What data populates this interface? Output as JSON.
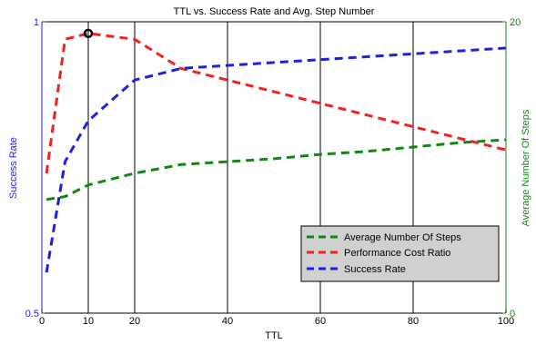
{
  "chart_data": {
    "type": "line",
    "title": "TTL vs. Success Rate and Avg. Step Number",
    "xlabel": "TTL",
    "ylabel_left": "Success Rate",
    "ylabel_right": "Average Number Of Steps",
    "xlim": [
      0,
      100
    ],
    "ylim_left": [
      0.5,
      1
    ],
    "ylim_right": [
      0,
      20
    ],
    "x_ticks": [
      "0",
      "10",
      "20",
      "40",
      "60",
      "80",
      "100"
    ],
    "y_left_ticks": [
      "0.5",
      "1"
    ],
    "y_right_ticks": [
      "0",
      "20"
    ],
    "vertical_gridlines_at": [
      10,
      20,
      40,
      60,
      80
    ],
    "legend_position": "bottom-right",
    "colors": {
      "success_rate": "#1f1fe0",
      "performance_cost_ratio": "#ee2222",
      "average_steps": "#118811",
      "left_axis": "#1f1fe0",
      "right_axis": "#118811",
      "legend_bg": "#d0d0d0"
    },
    "series": [
      {
        "name": "Average Number Of Steps",
        "key": "average_steps",
        "axis": "right",
        "x": [
          1,
          5,
          10,
          20,
          30,
          40,
          50,
          60,
          70,
          80,
          90,
          100
        ],
        "values": [
          7.8,
          8.0,
          8.8,
          9.6,
          10.2,
          10.4,
          10.6,
          10.9,
          11.1,
          11.4,
          11.7,
          11.9
        ]
      },
      {
        "name": "Performance Cost Ratio",
        "key": "performance_cost_ratio",
        "axis": "left",
        "x": [
          1,
          5,
          10,
          20,
          30,
          40,
          50,
          60,
          70,
          80,
          90,
          100
        ],
        "values": [
          0.74,
          0.97,
          0.98,
          0.97,
          0.92,
          0.9,
          0.88,
          0.86,
          0.84,
          0.82,
          0.8,
          0.78
        ]
      },
      {
        "name": "Success Rate",
        "key": "success_rate",
        "axis": "left",
        "x": [
          1,
          5,
          10,
          20,
          30,
          40,
          50,
          60,
          70,
          80,
          90,
          100
        ],
        "values": [
          0.57,
          0.76,
          0.83,
          0.9,
          0.92,
          0.925,
          0.93,
          0.935,
          0.94,
          0.945,
          0.95,
          0.955
        ]
      }
    ],
    "marker": {
      "x": 10,
      "y": 0.98,
      "axis": "left",
      "shape": "circle"
    }
  }
}
